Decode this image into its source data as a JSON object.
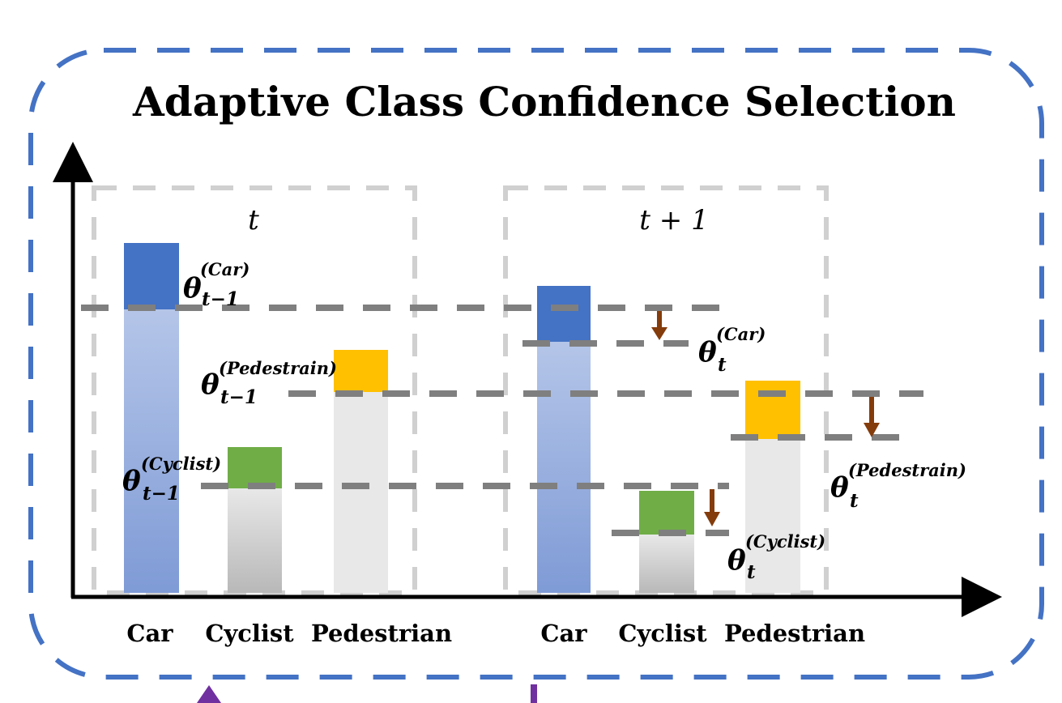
{
  "title": "Adaptive Class Confidence Selection",
  "panels": [
    {
      "label": "t",
      "categories": [
        "Car",
        "Cyclist",
        "Pedestrian"
      ]
    },
    {
      "label": "t + 1",
      "categories": [
        "Car",
        "Cyclist",
        "Pedestrian"
      ]
    }
  ],
  "thresholds": {
    "prev": [
      {
        "symbol": "θ",
        "sup": "(Car)",
        "sub": "t−1"
      },
      {
        "symbol": "θ",
        "sup": "(Pedestrain)",
        "sub": "t−1"
      },
      {
        "symbol": "θ",
        "sup": "(Cyclist)",
        "sub": "t−1"
      }
    ],
    "curr": [
      {
        "symbol": "θ",
        "sup": "(Car)",
        "sub": "t"
      },
      {
        "symbol": "θ",
        "sup": "(Pedestrain)",
        "sub": "t"
      },
      {
        "symbol": "θ",
        "sup": "(Cyclist)",
        "sub": "t"
      }
    ]
  },
  "colors": {
    "frame": "#4472c4",
    "car_top": "#4472c4",
    "pedestrian_top": "#ffc000",
    "cyclist_top": "#70ad47",
    "threshold_line": "#7f7f7f",
    "arrow": "#843c0c",
    "panel_box": "#d0d0d0"
  }
}
